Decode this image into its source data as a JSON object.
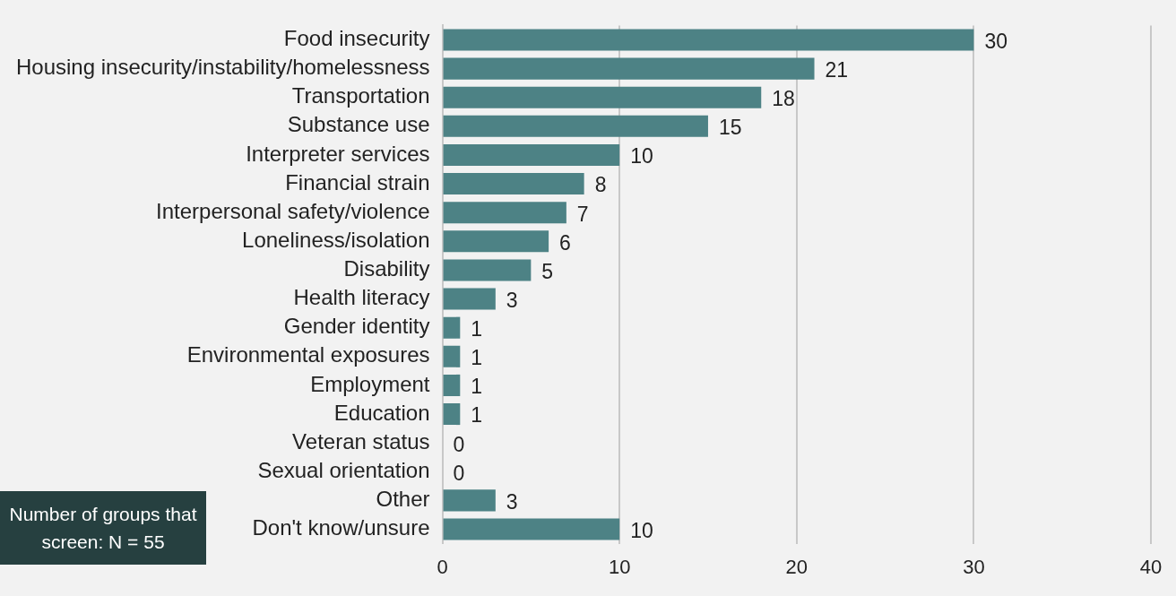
{
  "chart_data": {
    "type": "bar",
    "orientation": "horizontal",
    "categories": [
      "Food insecurity",
      "Housing insecurity/instability/homelessness",
      "Transportation",
      "Substance use",
      "Interpreter services",
      "Financial strain",
      "Interpersonal safety/violence",
      "Loneliness/isolation",
      "Disability",
      "Health literacy",
      "Gender identity",
      "Environmental exposures",
      "Employment",
      "Education",
      "Veteran status",
      "Sexual orientation",
      "Other",
      "Don't know/unsure"
    ],
    "values": [
      30,
      21,
      18,
      15,
      10,
      8,
      7,
      6,
      5,
      3,
      1,
      1,
      1,
      1,
      0,
      0,
      3,
      10
    ],
    "color": "#4d8285",
    "xlim": [
      0,
      40
    ],
    "xticks": [
      0,
      10,
      20,
      30,
      40
    ],
    "grid": "x",
    "data_labels": true,
    "annotations": [
      "Number of groups that screen: N = 55"
    ]
  }
}
